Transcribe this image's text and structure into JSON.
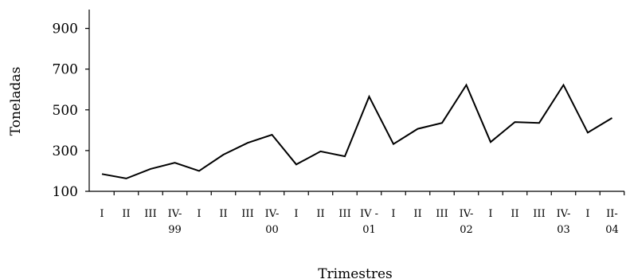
{
  "chart_data": {
    "type": "line",
    "title": "",
    "xlabel": "Trimestres",
    "ylabel": "Toneladas",
    "ylim": [
      100,
      1000
    ],
    "yticks": [
      100,
      300,
      500,
      700,
      900
    ],
    "categories": [
      [
        "I"
      ],
      [
        "II"
      ],
      [
        "III"
      ],
      [
        "IV-",
        "99"
      ],
      [
        "I"
      ],
      [
        "II"
      ],
      [
        "III"
      ],
      [
        "IV-",
        "00"
      ],
      [
        "I"
      ],
      [
        "II"
      ],
      [
        "III"
      ],
      [
        "IV -",
        "01"
      ],
      [
        "I"
      ],
      [
        "II"
      ],
      [
        "III"
      ],
      [
        "IV-",
        "02"
      ],
      [
        "I"
      ],
      [
        "II"
      ],
      [
        "III"
      ],
      [
        "IV-",
        "03"
      ],
      [
        "I"
      ],
      [
        "II-",
        "04"
      ]
    ],
    "series": [
      {
        "values": [
          185,
          163,
          210,
          240,
          200,
          280,
          338,
          378,
          232,
          296,
          272,
          565,
          332,
          407,
          436,
          622,
          342,
          440,
          436,
          622,
          388,
          460
        ],
        "color": "#000000"
      }
    ],
    "grid": false,
    "legend": "none"
  }
}
